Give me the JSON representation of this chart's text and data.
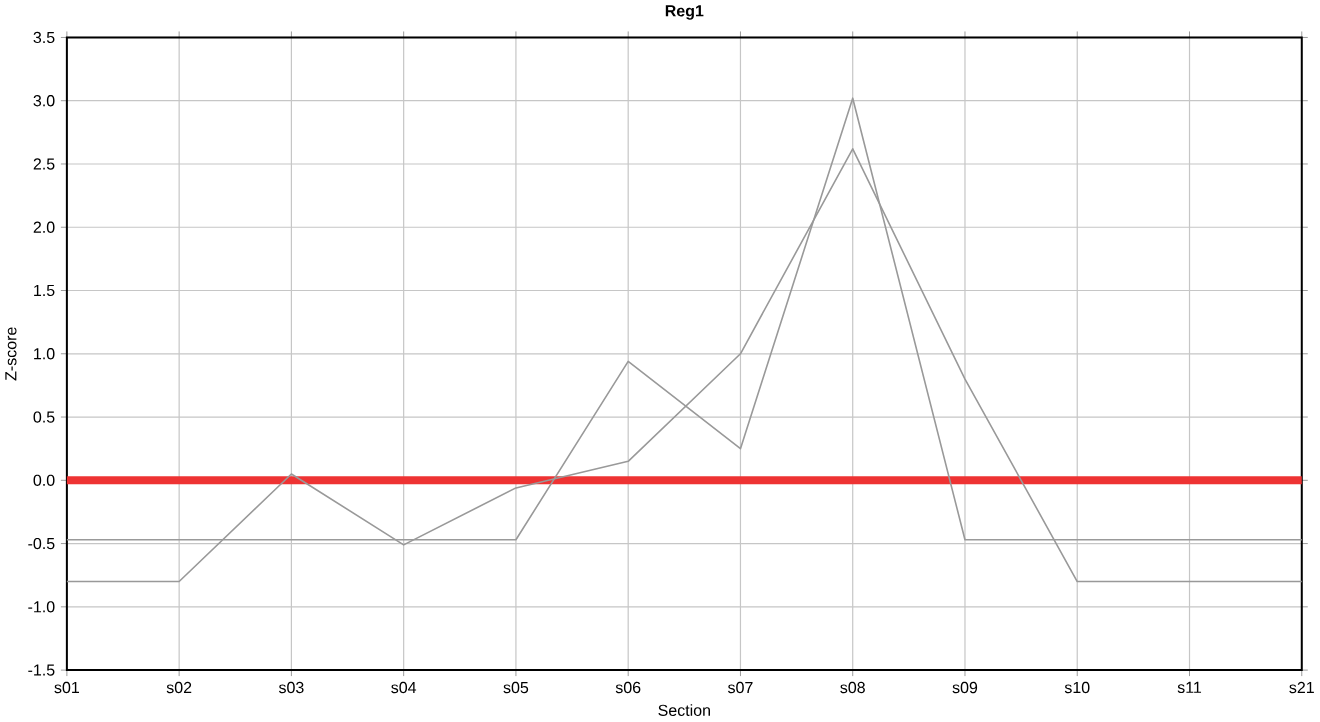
{
  "chart_data": {
    "type": "line",
    "title": "Reg1",
    "xlabel": "Section",
    "ylabel": "Z-score",
    "categories": [
      "s01",
      "s02",
      "s03",
      "s04",
      "s05",
      "s06",
      "s07",
      "s08",
      "s09",
      "s10",
      "s11",
      "s21"
    ],
    "series": [
      {
        "color": "#999999",
        "values": [
          -0.8,
          -0.8,
          0.05,
          -0.51,
          -0.06,
          0.15,
          1.0,
          2.62,
          0.8,
          -0.8,
          -0.8,
          -0.8
        ]
      },
      {
        "color": "#999999",
        "values": [
          -0.47,
          -0.47,
          -0.47,
          -0.47,
          -0.47,
          0.94,
          0.25,
          3.02,
          -0.47,
          -0.47,
          -0.47,
          -0.47
        ]
      }
    ],
    "ylim": [
      -1.5,
      3.5
    ],
    "yticks": [
      -1.5,
      {
        "value": -1,
        "label": "-1.0"
      },
      -0.5,
      {
        "value": 0,
        "label": "0.0"
      },
      0.5,
      {
        "value": 1,
        "label": "1.0"
      },
      1.5,
      {
        "value": 2,
        "label": "2.0"
      },
      2.5,
      {
        "value": 3,
        "label": "3.0"
      },
      3.5
    ],
    "ref_lines": [
      {
        "axis": "y",
        "value": 0,
        "color": "#ee3333"
      }
    ],
    "grid": true,
    "marker": "none",
    "line_style": "solid"
  }
}
